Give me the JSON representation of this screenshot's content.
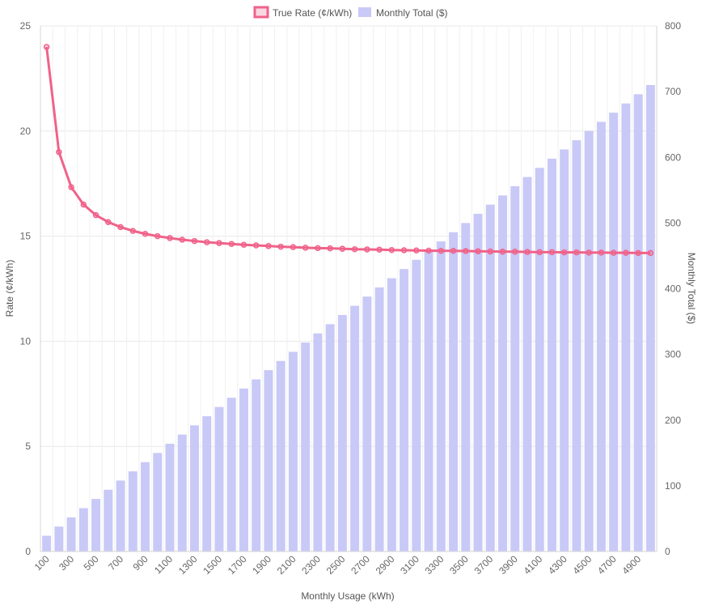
{
  "chart_data": {
    "type": "bar",
    "x": [
      100,
      200,
      300,
      400,
      500,
      600,
      700,
      800,
      900,
      1000,
      1100,
      1200,
      1300,
      1400,
      1500,
      1600,
      1700,
      1800,
      1900,
      2000,
      2100,
      2200,
      2300,
      2400,
      2500,
      2600,
      2700,
      2800,
      2900,
      3000,
      3100,
      3200,
      3300,
      3400,
      3500,
      3600,
      3700,
      3800,
      3900,
      4000,
      4100,
      4200,
      4300,
      4400,
      4500,
      4600,
      4700,
      4800,
      4900,
      5000
    ],
    "x_tick_labels": [
      "100",
      "300",
      "500",
      "700",
      "900",
      "1100",
      "1300",
      "1500",
      "1700",
      "1900",
      "2100",
      "2300",
      "2500",
      "2700",
      "2900",
      "3100",
      "3300",
      "3500",
      "3700",
      "3900",
      "4100",
      "4300",
      "4500",
      "4700",
      "4900"
    ],
    "xlabel": "Monthly Usage (kWh)",
    "y_left": {
      "label": "Rate (¢/kWh)",
      "ylim": [
        0,
        25
      ],
      "ticks": [
        0,
        5,
        10,
        15,
        20,
        25
      ]
    },
    "y_right": {
      "label": "Monthly Total ($)",
      "ylim": [
        0,
        800
      ],
      "ticks": [
        0,
        100,
        200,
        300,
        400,
        500,
        600,
        700,
        800
      ]
    },
    "series": [
      {
        "name": "True Rate (¢/kWh)",
        "type": "line",
        "axis": "left",
        "color": "#f06289",
        "values": [
          24.0,
          19.0,
          17.33,
          16.5,
          16.0,
          15.67,
          15.43,
          15.25,
          15.11,
          15.0,
          14.91,
          14.83,
          14.77,
          14.71,
          14.67,
          14.63,
          14.59,
          14.56,
          14.53,
          14.5,
          14.48,
          14.45,
          14.43,
          14.42,
          14.4,
          14.38,
          14.37,
          14.36,
          14.34,
          14.33,
          14.32,
          14.31,
          14.3,
          14.3,
          14.29,
          14.28,
          14.27,
          14.26,
          14.26,
          14.25,
          14.24,
          14.24,
          14.23,
          14.23,
          14.22,
          14.22,
          14.21,
          14.21,
          14.2,
          14.2
        ]
      },
      {
        "name": "Monthly Total ($)",
        "type": "bar",
        "axis": "right",
        "color": "#c9c9f7",
        "values": [
          24,
          38,
          52,
          66,
          80,
          94,
          108,
          122,
          136,
          150,
          164,
          178,
          192,
          206,
          220,
          234,
          248,
          262,
          276,
          290,
          304,
          318,
          332,
          346,
          360,
          374,
          388,
          402,
          416,
          430,
          444,
          458,
          472,
          486,
          500,
          514,
          528,
          542,
          556,
          570,
          584,
          598,
          612,
          626,
          640,
          654,
          668,
          682,
          696,
          710
        ]
      }
    ],
    "legend": {
      "position": "top-center"
    },
    "grid": true
  }
}
